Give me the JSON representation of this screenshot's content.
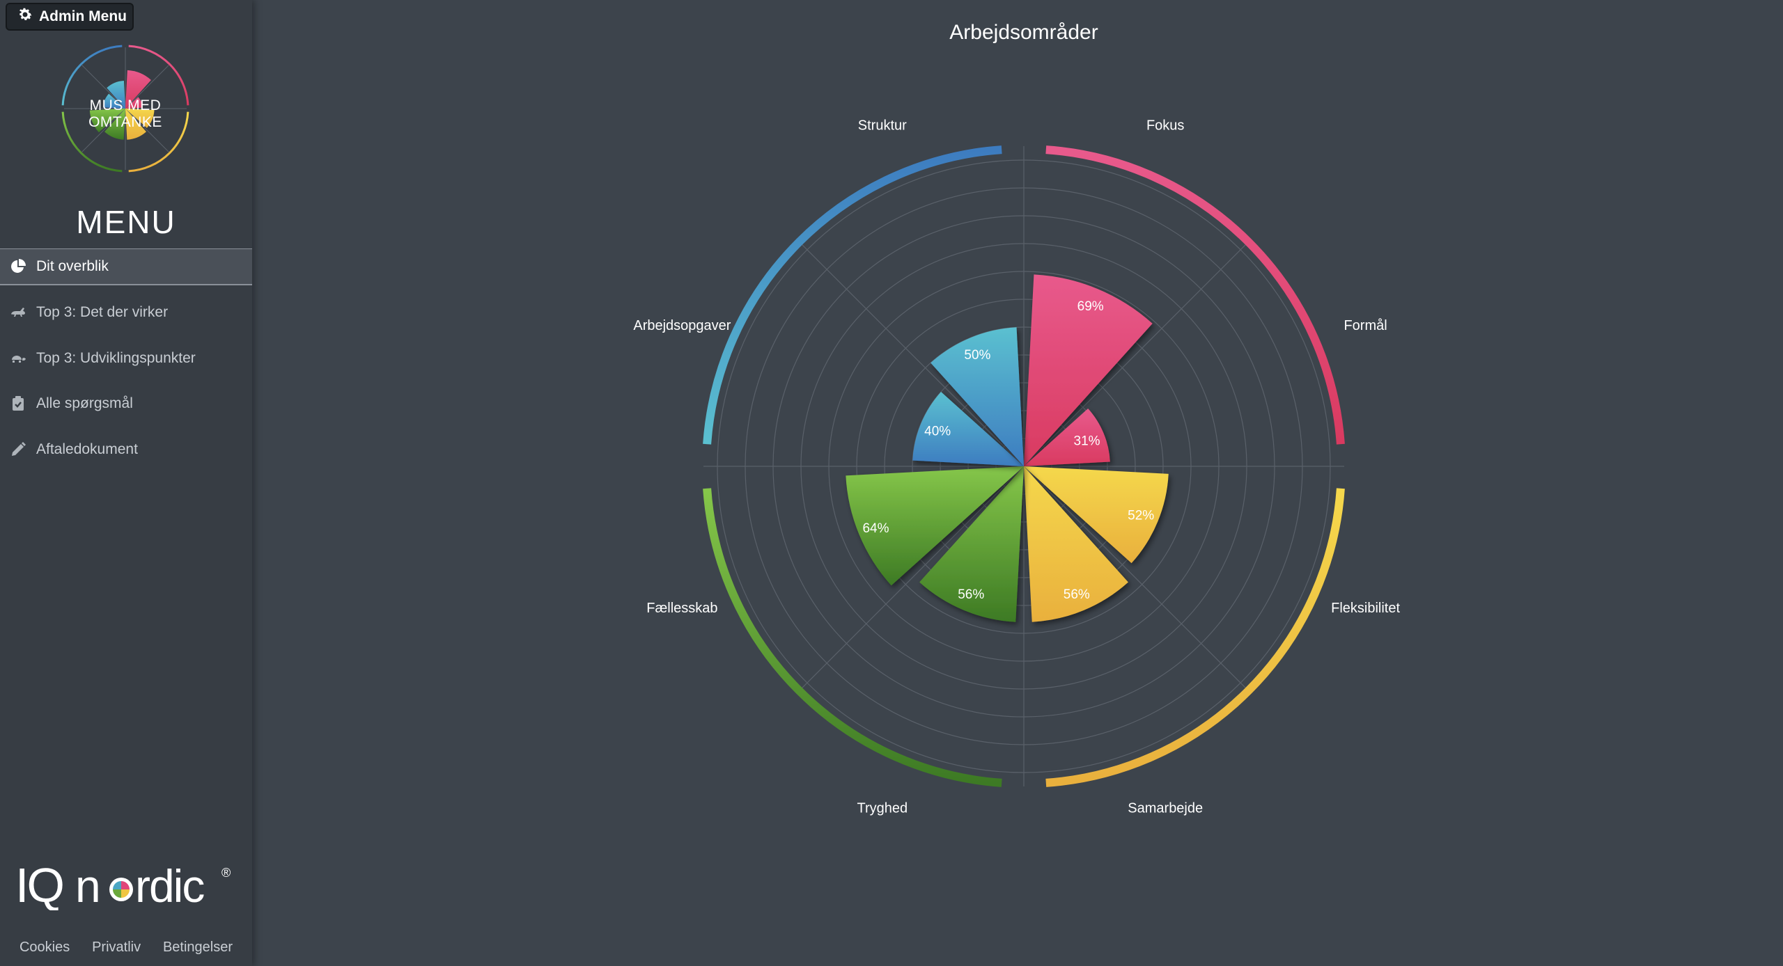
{
  "admin": {
    "label": "Admin Menu",
    "icon": "gear-icon"
  },
  "logo": {
    "text": "MUS MED OMTANKE"
  },
  "menu": {
    "title": "MENU",
    "items": [
      {
        "label": "Dit overblik",
        "icon": "pie-chart-icon",
        "active": true
      },
      {
        "label": "Top 3: Det der virker",
        "icon": "rabbit-icon",
        "active": false
      },
      {
        "label": "Top 3: Udviklingspunkter",
        "icon": "turtle-icon",
        "active": false
      },
      {
        "label": "Alle spørgsmål",
        "icon": "clipboard-check-icon",
        "active": false
      },
      {
        "label": "Aftaledokument",
        "icon": "pencil-icon",
        "active": false
      }
    ]
  },
  "brand": {
    "name": "IQ nordic",
    "registered": "®"
  },
  "footer": {
    "cookies": "Cookies",
    "privacy": "Privatliv",
    "terms": "Betingelser"
  },
  "colors": {
    "background": "#3d444c",
    "sidebar": "#373d44",
    "pink": "#e0457a",
    "yellow": "#f0c541",
    "green": "#6aa83c",
    "blue": "#4aa6c4"
  },
  "chart_data": {
    "type": "polar-area",
    "title": "Arbejdsområder",
    "ylim": [
      0,
      100
    ],
    "grid": true,
    "categories": [
      "Fokus",
      "Formål",
      "Fleksibilitet",
      "Samarbejde",
      "Tryghed",
      "Fællesskab",
      "Arbejdsopgaver",
      "Struktur"
    ],
    "values": [
      69,
      31,
      52,
      56,
      56,
      64,
      40,
      50
    ],
    "value_labels": [
      "69%",
      "31%",
      "52%",
      "56%",
      "56%",
      "64%",
      "40%",
      "50%"
    ],
    "groups": [
      {
        "color_top": "#e85a8c",
        "color_bottom": "#d93a60"
      },
      {
        "color_top": "#f5d84c",
        "color_bottom": "#e9b03d"
      },
      {
        "color_top": "#86c74a",
        "color_bottom": "#3d7a24"
      },
      {
        "color_top": "#5bc0d0",
        "color_bottom": "#3d7cc0"
      }
    ]
  }
}
